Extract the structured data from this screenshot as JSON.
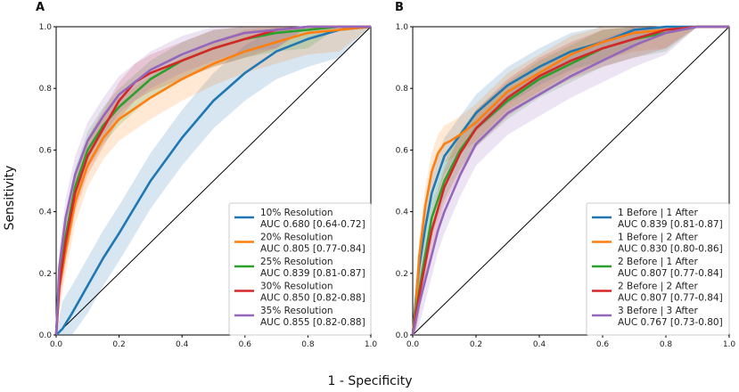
{
  "figure": {
    "xlabel": "1 - Specificity",
    "ylabel": "Sensitivity"
  },
  "chart_data": [
    {
      "type": "line",
      "panel": "A",
      "xlim": [
        0.0,
        1.0
      ],
      "ylim": [
        0.0,
        1.0
      ],
      "ticks": [
        "0.0",
        "0.2",
        "0.4",
        "0.6",
        "0.8",
        "1.0"
      ],
      "tick_values": [
        0.0,
        0.2,
        0.4,
        0.6,
        0.8,
        1.0
      ],
      "legend_position": "lower-right",
      "series": [
        {
          "name": "10% Resolution",
          "auc_label": "AUC 0.680 [0.64-0.72]",
          "color": "#1f77b4",
          "x": [
            0,
            0.02,
            0.05,
            0.1,
            0.15,
            0.2,
            0.3,
            0.4,
            0.5,
            0.6,
            0.7,
            0.8,
            0.9,
            1.0
          ],
          "y": [
            0,
            0.02,
            0.07,
            0.16,
            0.25,
            0.33,
            0.5,
            0.64,
            0.76,
            0.85,
            0.92,
            0.96,
            0.99,
            1.0
          ],
          "band": 0.09
        },
        {
          "name": "20% Resolution",
          "auc_label": "AUC 0.805 [0.77-0.84]",
          "color": "#ff7f0e",
          "x": [
            0,
            0.01,
            0.03,
            0.06,
            0.1,
            0.15,
            0.2,
            0.3,
            0.4,
            0.5,
            0.6,
            0.7,
            0.8,
            0.9,
            1.0
          ],
          "y": [
            0,
            0.15,
            0.27,
            0.43,
            0.55,
            0.64,
            0.7,
            0.77,
            0.83,
            0.88,
            0.92,
            0.95,
            0.98,
            0.99,
            1.0
          ],
          "band": 0.07
        },
        {
          "name": "25% Resolution",
          "auc_label": "AUC 0.839 [0.81-0.87]",
          "color": "#2ca02c",
          "x": [
            0,
            0.01,
            0.03,
            0.06,
            0.1,
            0.15,
            0.2,
            0.3,
            0.4,
            0.5,
            0.6,
            0.7,
            0.8,
            0.9,
            1.0
          ],
          "y": [
            0,
            0.18,
            0.32,
            0.48,
            0.6,
            0.68,
            0.74,
            0.83,
            0.89,
            0.93,
            0.96,
            0.98,
            0.99,
            1.0,
            1.0
          ],
          "band": 0.06
        },
        {
          "name": "30% Resolution",
          "auc_label": "AUC 0.850 [0.82-0.88]",
          "color": "#d62728",
          "x": [
            0,
            0.01,
            0.03,
            0.06,
            0.1,
            0.15,
            0.2,
            0.25,
            0.3,
            0.4,
            0.5,
            0.6,
            0.7,
            0.8,
            0.9,
            1.0
          ],
          "y": [
            0,
            0.16,
            0.3,
            0.46,
            0.58,
            0.67,
            0.76,
            0.82,
            0.85,
            0.89,
            0.93,
            0.96,
            0.99,
            1.0,
            1.0,
            1.0
          ],
          "band": 0.06
        },
        {
          "name": "35% Resolution",
          "auc_label": "AUC 0.855 [0.82-0.88]",
          "color": "#9467bd",
          "x": [
            0,
            0.01,
            0.03,
            0.06,
            0.1,
            0.15,
            0.2,
            0.3,
            0.4,
            0.5,
            0.6,
            0.7,
            0.8,
            0.9,
            1.0
          ],
          "y": [
            0,
            0.22,
            0.38,
            0.52,
            0.63,
            0.71,
            0.78,
            0.86,
            0.91,
            0.95,
            0.98,
            0.99,
            1.0,
            1.0,
            1.0
          ],
          "band": 0.06
        }
      ]
    },
    {
      "type": "line",
      "panel": "B",
      "xlim": [
        0.0,
        1.0
      ],
      "ylim": [
        0.0,
        1.0
      ],
      "ticks": [
        "0.0",
        "0.2",
        "0.4",
        "0.6",
        "0.8",
        "1.0"
      ],
      "tick_values": [
        0.0,
        0.2,
        0.4,
        0.6,
        0.8,
        1.0
      ],
      "legend_position": "lower-right",
      "series": [
        {
          "name": "1 Before | 1 After",
          "auc_label": "AUC 0.839 [0.81-0.87]",
          "color": "#1f77b4",
          "x": [
            0,
            0.01,
            0.02,
            0.04,
            0.06,
            0.1,
            0.15,
            0.2,
            0.3,
            0.4,
            0.5,
            0.6,
            0.7,
            0.8,
            0.9,
            1.0
          ],
          "y": [
            0,
            0.12,
            0.22,
            0.35,
            0.46,
            0.58,
            0.65,
            0.72,
            0.81,
            0.87,
            0.92,
            0.95,
            0.99,
            1.0,
            1.0,
            1.0
          ],
          "band": 0.06
        },
        {
          "name": "1 Before | 2 After",
          "auc_label": "AUC 0.830 [0.80-0.86]",
          "color": "#ff7f0e",
          "x": [
            0,
            0.01,
            0.02,
            0.04,
            0.06,
            0.08,
            0.1,
            0.12,
            0.15,
            0.2,
            0.3,
            0.4,
            0.5,
            0.6,
            0.7,
            0.8,
            0.9,
            1.0
          ],
          "y": [
            0,
            0.1,
            0.25,
            0.42,
            0.53,
            0.59,
            0.62,
            0.63,
            0.65,
            0.69,
            0.79,
            0.85,
            0.91,
            0.95,
            0.98,
            0.99,
            1.0,
            1.0
          ],
          "band": 0.06
        },
        {
          "name": "2 Before | 1 After",
          "auc_label": "AUC 0.807 [0.77-0.84]",
          "color": "#2ca02c",
          "x": [
            0,
            0.01,
            0.03,
            0.06,
            0.1,
            0.15,
            0.2,
            0.3,
            0.4,
            0.5,
            0.6,
            0.7,
            0.8,
            0.9,
            1.0
          ],
          "y": [
            0,
            0.08,
            0.2,
            0.38,
            0.5,
            0.6,
            0.67,
            0.76,
            0.83,
            0.88,
            0.93,
            0.96,
            0.98,
            1.0,
            1.0
          ],
          "band": 0.06
        },
        {
          "name": "2 Before | 2 After",
          "auc_label": "AUC 0.807 [0.77-0.84]",
          "color": "#d62728",
          "x": [
            0,
            0.01,
            0.03,
            0.06,
            0.1,
            0.15,
            0.2,
            0.3,
            0.4,
            0.5,
            0.6,
            0.7,
            0.8,
            0.9,
            1.0
          ],
          "y": [
            0,
            0.07,
            0.18,
            0.34,
            0.48,
            0.59,
            0.67,
            0.77,
            0.84,
            0.89,
            0.93,
            0.96,
            0.99,
            1.0,
            1.0
          ],
          "band": 0.06
        },
        {
          "name": "3 Before | 3 After",
          "auc_label": "AUC 0.767 [0.73-0.80]",
          "color": "#9467bd",
          "x": [
            0,
            0.02,
            0.05,
            0.08,
            0.1,
            0.15,
            0.2,
            0.3,
            0.4,
            0.5,
            0.6,
            0.7,
            0.8,
            0.9,
            1.0
          ],
          "y": [
            0,
            0.1,
            0.22,
            0.34,
            0.4,
            0.52,
            0.62,
            0.72,
            0.78,
            0.84,
            0.89,
            0.94,
            0.98,
            1.0,
            1.0
          ],
          "band": 0.07
        }
      ]
    }
  ]
}
